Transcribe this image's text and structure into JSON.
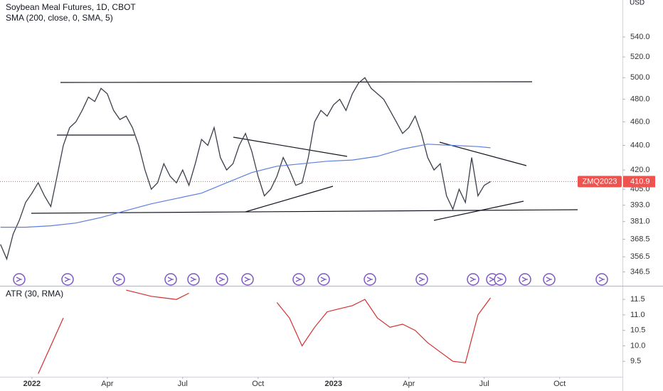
{
  "unit": "USD",
  "chart_data": [
    {
      "type": "line",
      "title": "Soybean Meal Futures, 1D, CBOT",
      "log": true,
      "xlim": [
        -1.27,
        23.5
      ],
      "xticks": [
        {
          "value": 0,
          "label": "2022"
        },
        {
          "value": 3,
          "label": "Apr"
        },
        {
          "value": 6,
          "label": "Jul"
        },
        {
          "value": 9,
          "label": "Oct"
        },
        {
          "value": 12,
          "label": "2023"
        },
        {
          "value": 15,
          "label": "Apr"
        },
        {
          "value": 18,
          "label": "Jul"
        },
        {
          "value": 21,
          "label": "Oct"
        }
      ],
      "ylim": [
        337.5,
        579
      ],
      "yticks": [
        346.5,
        356.5,
        368.5,
        {
          "value": 381,
          "label": "381.0"
        },
        {
          "value": 393,
          "label": "393.0"
        },
        {
          "value": 405,
          "label": "405.0"
        },
        {
          "value": 420,
          "label": "420.0"
        },
        {
          "value": 440,
          "label": "440.0"
        },
        {
          "value": 460,
          "label": "460.0"
        },
        {
          "value": 480,
          "label": "480.0"
        },
        {
          "value": 500,
          "label": "500.0"
        },
        {
          "value": 520,
          "label": "520.0"
        },
        {
          "value": 540,
          "label": "540.0"
        }
      ],
      "series": [
        {
          "name": "ZMQ2023",
          "color": "#3a3f4b",
          "x": [
            -1.25,
            -1,
            -0.75,
            -0.5,
            -0.25,
            0,
            0.25,
            0.5,
            0.75,
            1,
            1.25,
            1.5,
            1.75,
            2,
            2.25,
            2.5,
            2.75,
            3,
            3.25,
            3.5,
            3.75,
            4,
            4.25,
            4.5,
            4.75,
            5,
            5.25,
            5.5,
            5.75,
            6,
            6.25,
            6.5,
            6.75,
            7,
            7.25,
            7.5,
            7.75,
            8,
            8.25,
            8.5,
            8.75,
            9,
            9.25,
            9.5,
            9.75,
            10,
            10.25,
            10.5,
            10.75,
            11,
            11.25,
            11.5,
            11.75,
            12,
            12.25,
            12.5,
            12.75,
            13,
            13.25,
            13.5,
            13.75,
            14,
            14.25,
            14.5,
            14.75,
            15,
            15.25,
            15.5,
            15.75,
            16,
            16.25,
            16.5,
            16.75,
            17,
            17.25,
            17.5,
            17.75,
            18,
            18.25
          ],
          "values": [
            365,
            355,
            372,
            382,
            395,
            402,
            410,
            400,
            392,
            415,
            440,
            455,
            460,
            470,
            482,
            478,
            490,
            485,
            470,
            462,
            465,
            455,
            440,
            420,
            405,
            410,
            425,
            415,
            410,
            420,
            408,
            425,
            445,
            440,
            455,
            430,
            420,
            425,
            440,
            450,
            435,
            415,
            400,
            405,
            415,
            430,
            420,
            408,
            410,
            430,
            460,
            470,
            465,
            475,
            480,
            470,
            485,
            495,
            500,
            490,
            485,
            480,
            470,
            460,
            450,
            455,
            465,
            450,
            430,
            420,
            425,
            400,
            390,
            405,
            395,
            430,
            400,
            408,
            410.9
          ],
          "last_label": "410.9"
        },
        {
          "name": "SMA (200, close, 0, SMA, 5)",
          "color": "#5b7fde",
          "x": [
            -1.25,
            -0.25,
            0.75,
            1.75,
            2.75,
            3.75,
            4.75,
            5.75,
            6.75,
            7.75,
            8.75,
            9.75,
            10.75,
            11.75,
            12.75,
            13.75,
            14.75,
            15.75,
            16.75,
            17.75,
            18.25
          ],
          "values": [
            377,
            377,
            378,
            380,
            384,
            389,
            394,
            398,
            402,
            410,
            418,
            423,
            425,
            427,
            428,
            431,
            437,
            441,
            440,
            439,
            438
          ]
        }
      ]
    },
    {
      "type": "line",
      "ylim": [
        9.0,
        11.94
      ],
      "yticks": [
        9.5,
        {
          "value": 10,
          "label": "10.0"
        },
        10.5,
        {
          "value": 11,
          "label": "11.0"
        },
        11.5
      ],
      "series": [
        {
          "name": "ATR (30, RMA)",
          "color": "#d32f2f",
          "x": [
            0.25,
            0.75,
            1.25,
            1.75,
            2.25,
            2.75,
            3.25,
            3.75,
            4.25,
            4.75,
            5.25,
            5.75,
            6.25,
            6.75,
            7.25,
            7.75,
            8.25,
            8.75,
            9.25,
            9.75,
            10.25,
            10.75,
            11.25,
            11.75,
            12.25,
            12.75,
            13.25,
            13.75,
            14.25,
            14.75,
            15.25,
            15.75,
            16.25,
            16.75,
            17.25,
            17.75,
            18.25
          ],
          "values": [
            9.1,
            10.0,
            10.9,
            null,
            null,
            null,
            null,
            11.8,
            11.7,
            11.6,
            11.55,
            11.5,
            11.7,
            null,
            null,
            null,
            null,
            null,
            null,
            11.4,
            10.9,
            10.0,
            10.6,
            11.1,
            11.2,
            11.3,
            11.5,
            10.9,
            10.6,
            10.7,
            10.5,
            10.1,
            9.8,
            9.5,
            9.45,
            11.0,
            11.55
          ]
        }
      ]
    }
  ]
}
